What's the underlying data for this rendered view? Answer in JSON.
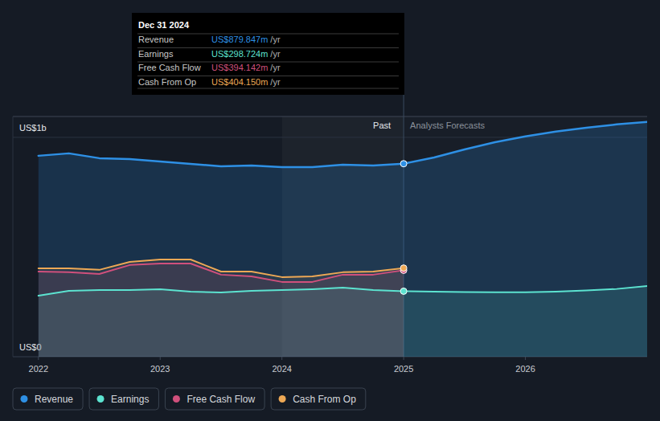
{
  "chart_data": {
    "type": "line",
    "x": [
      2022,
      2022.25,
      2022.5,
      2022.75,
      2023,
      2023.25,
      2023.5,
      2023.75,
      2024,
      2024.25,
      2024.5,
      2024.75,
      2025,
      2025.25,
      2025.5,
      2025.75,
      2026,
      2026.25,
      2026.5,
      2026.75,
      2027
    ],
    "xlim": [
      2021.79,
      2027
    ],
    "xticks": [
      2022,
      2023,
      2024,
      2025,
      2026
    ],
    "ylim": [
      0,
      1095
    ],
    "yticks": [
      {
        "value": 0,
        "label": "US$0"
      },
      {
        "value": 1000,
        "label": "US$1b"
      }
    ],
    "grid": true,
    "legend": "bottom-left",
    "series": [
      {
        "name": "Revenue",
        "color": "#2e90e5",
        "marker": "circle",
        "values": [
          916,
          927,
          905,
          901,
          890,
          879,
          868,
          872,
          864,
          864,
          875,
          872,
          879.847,
          908,
          945,
          978,
          1004,
          1026,
          1044,
          1059,
          1070
        ]
      },
      {
        "name": "Earnings",
        "color": "#5ce3d0",
        "marker": "circle",
        "values": [
          278,
          300,
          304,
          304,
          308,
          297,
          293,
          300,
          304,
          308,
          315,
          304,
          298.724,
          297,
          295,
          294,
          294,
          297,
          302,
          309,
          322
        ]
      },
      {
        "name": "Free Cash Flow",
        "color": "#d0507c",
        "marker": "circle",
        "values": [
          388,
          385,
          377,
          418,
          425,
          425,
          374,
          366,
          341,
          341,
          374,
          374,
          394.142,
          null,
          null,
          null,
          null,
          null,
          null,
          null,
          null
        ]
      },
      {
        "name": "Cash From Op",
        "color": "#eda855",
        "marker": "circle",
        "values": [
          403,
          403,
          396,
          432,
          443,
          443,
          388,
          388,
          363,
          366,
          385,
          388,
          404.15,
          null,
          null,
          null,
          null,
          null,
          null,
          null,
          null
        ]
      }
    ],
    "annotations": {
      "past_label": "Past",
      "forecast_label": "Analysts Forecasts",
      "forecast_start": 2025,
      "tooltip": {
        "title": "Dec 31 2024",
        "values": [
          "US$879.847m",
          "US$298.724m",
          "US$394.142m",
          "US$404.150m"
        ],
        "unit": "/yr"
      }
    }
  }
}
